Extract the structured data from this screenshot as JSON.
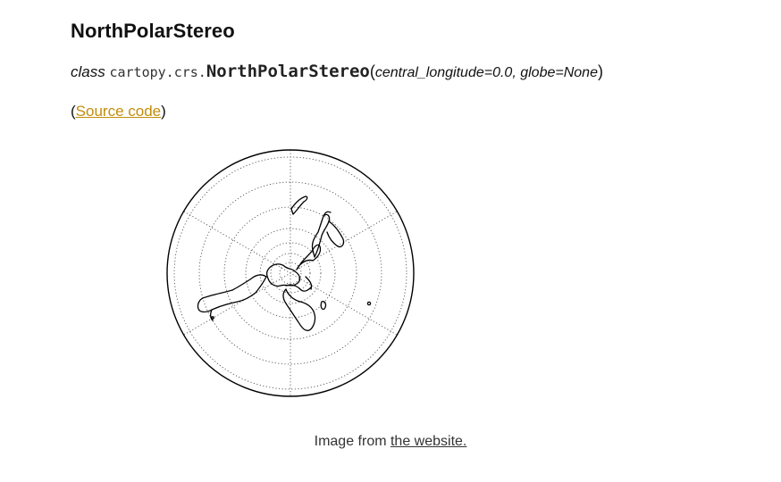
{
  "heading": "NorthPolarStereo",
  "signature": {
    "keyword": "class",
    "module": "cartopy.crs.",
    "name": "NorthPolarStereo",
    "open_paren": "(",
    "params": "central_longitude=0.0, globe=None",
    "close_paren": ")"
  },
  "source": {
    "open_paren": "(",
    "link_label": "Source code",
    "close_paren": ")"
  },
  "figure": {
    "projection": "north-polar-stereographic",
    "graticule": "dotted"
  },
  "caption": {
    "prefix": "Image from ",
    "link_label": "the website."
  }
}
